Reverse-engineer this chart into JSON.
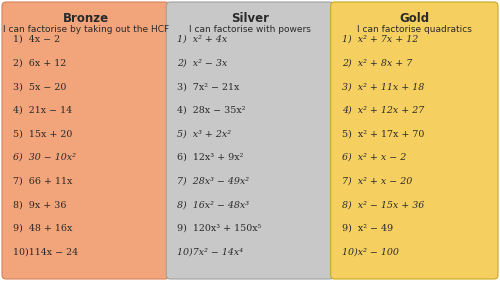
{
  "columns": [
    {
      "title": "Bronze",
      "subtitle": "I can factorise by taking out the HCF",
      "bg_color": "#F2A47A",
      "border_color": "#D4855A",
      "items": [
        [
          "1)  4x − 2",
          false
        ],
        [
          "2)  6x + 12",
          false
        ],
        [
          "3)  5x − 20",
          false
        ],
        [
          "4)  21x − 14",
          false
        ],
        [
          "5)  15x + 20",
          false
        ],
        [
          "6)  30 − 10x²",
          true
        ],
        [
          "7)  66 + 11x",
          false
        ],
        [
          "8)  9x + 36",
          false
        ],
        [
          "9)  48 + 16x",
          false
        ],
        [
          "10)114x − 24",
          false
        ]
      ]
    },
    {
      "title": "Silver",
      "subtitle": "I can factorise with powers",
      "bg_color": "#C8C8C8",
      "border_color": "#A0A0A0",
      "items": [
        [
          "1)  x² + 4x",
          true
        ],
        [
          "2)  x² − 3x",
          true
        ],
        [
          "3)  7x² − 21x",
          false
        ],
        [
          "4)  28x − 35x²",
          false
        ],
        [
          "5)  x³ + 2x²",
          true
        ],
        [
          "6)  12x³ + 9x²",
          false
        ],
        [
          "7)  28x³ − 49x²",
          true
        ],
        [
          "8)  16x² − 48x³",
          true
        ],
        [
          "9)  120x³ + 150x⁵",
          false
        ],
        [
          "10)7x² − 14x⁴",
          true
        ]
      ]
    },
    {
      "title": "Gold",
      "subtitle": "I can factorise quadratics",
      "bg_color": "#F5D060",
      "border_color": "#C8A820",
      "items": [
        [
          "1)  x² + 7x + 12",
          true
        ],
        [
          "2)  x² + 8x + 7",
          true
        ],
        [
          "3)  x² + 11x + 18",
          true
        ],
        [
          "4)  x² + 12x + 27",
          true
        ],
        [
          "5)  x² + 17x + 70",
          false
        ],
        [
          "6)  x² + x − 2",
          true
        ],
        [
          "7)  x² + x − 20",
          true
        ],
        [
          "8)  x² − 15x + 36",
          true
        ],
        [
          "9)  x² − 49",
          false
        ],
        [
          "10)x² − 100",
          true
        ]
      ]
    }
  ],
  "bg_color": "#FFFFFF",
  "text_color": "#2a2a2a",
  "title_fontsize": 8.5,
  "subtitle_fontsize": 6.5,
  "item_fontsize": 6.8
}
